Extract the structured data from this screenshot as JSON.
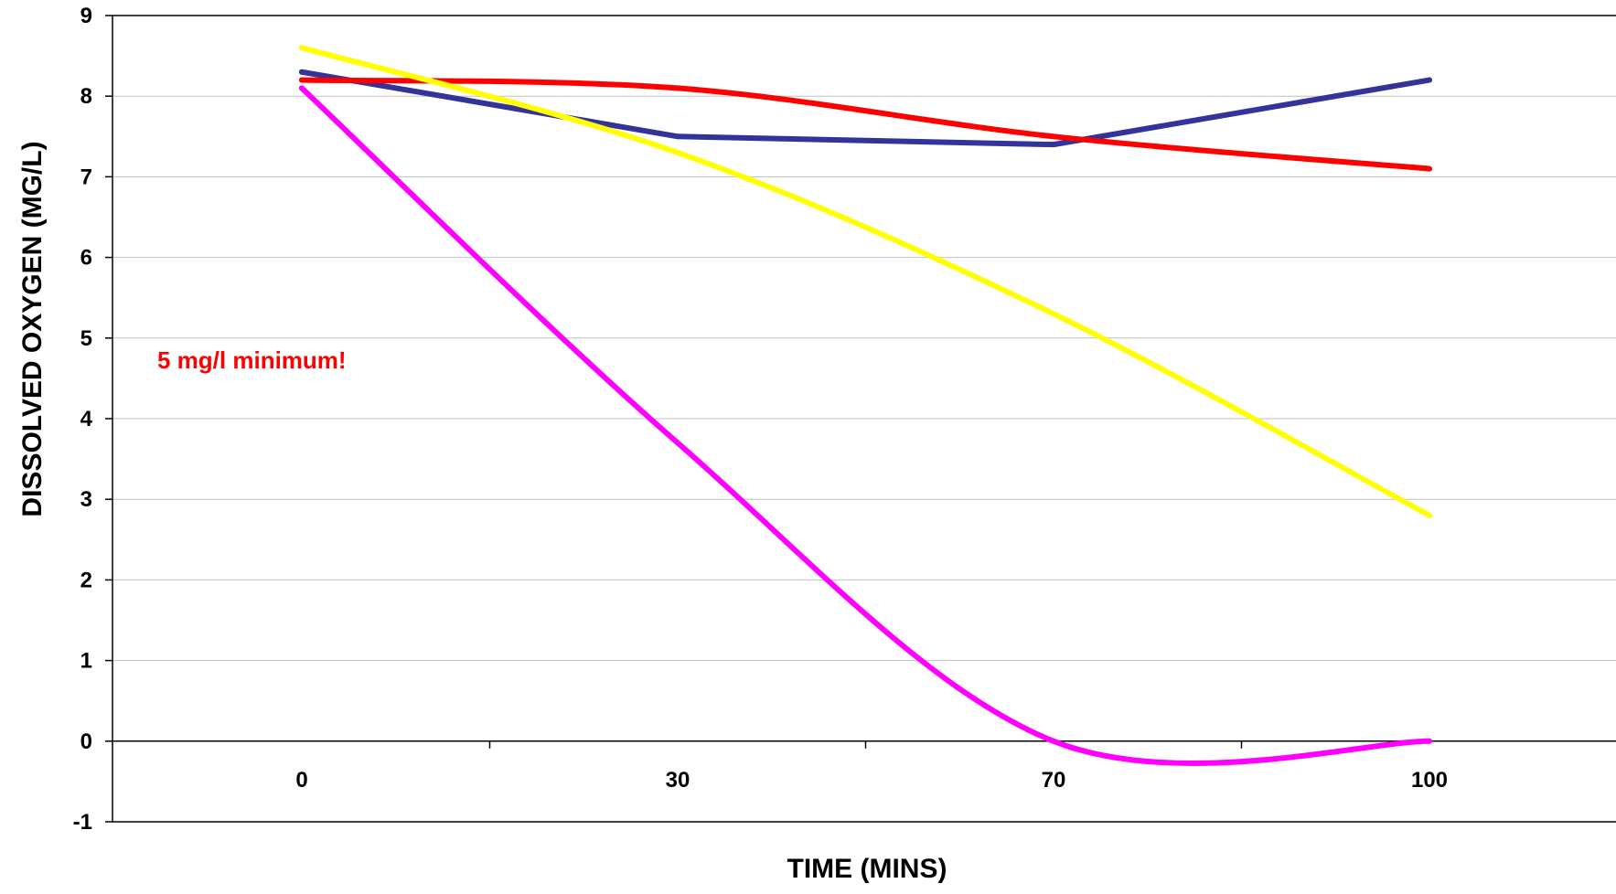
{
  "chart_data": {
    "type": "line",
    "title": "",
    "xlabel": "TIME (MINS)",
    "ylabel": "DISSOLVED OXYGEN (MG/L)",
    "categories": [
      "0",
      "30",
      "70",
      "100"
    ],
    "yticks": [
      "-1",
      "0",
      "1",
      "2",
      "3",
      "4",
      "5",
      "6",
      "7",
      "8",
      "9"
    ],
    "ylim": [
      -1,
      9
    ],
    "grid": true,
    "smooth": true,
    "legend": "none",
    "annotation": {
      "text": "5 mg/l minimum!",
      "color": "#ff0000"
    },
    "series": [
      {
        "color": "#333399",
        "smooth": false,
        "values": [
          8.3,
          7.5,
          7.4,
          8.2
        ]
      },
      {
        "color": "#ff0000",
        "smooth": true,
        "values": [
          8.2,
          8.1,
          7.5,
          7.1
        ]
      },
      {
        "color": "#ffff00",
        "smooth": true,
        "values": [
          8.6,
          7.3,
          5.3,
          2.8
        ]
      },
      {
        "color": "#ff00ff",
        "smooth": true,
        "values": [
          8.1,
          3.7,
          0.0,
          0.0
        ]
      }
    ]
  }
}
